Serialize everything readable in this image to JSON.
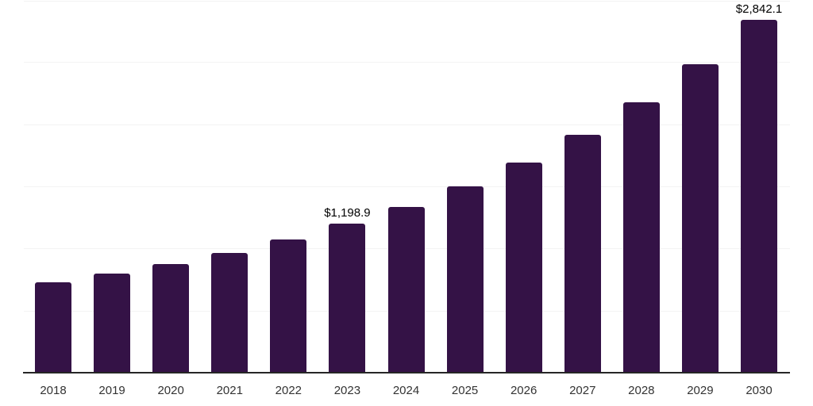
{
  "chart_data": {
    "type": "bar",
    "title": "",
    "xlabel": "",
    "ylabel": "",
    "categories": [
      "2018",
      "2019",
      "2020",
      "2021",
      "2022",
      "2023",
      "2024",
      "2025",
      "2026",
      "2027",
      "2028",
      "2029",
      "2030"
    ],
    "values": [
      725,
      800,
      875,
      962,
      1075,
      1198.9,
      1335,
      1500,
      1690,
      1912,
      2178,
      2484,
      2842.1
    ],
    "data_labels": [
      "",
      "",
      "",
      "",
      "",
      "$1,198.9",
      "",
      "",
      "",
      "",
      "",
      "",
      "$2,842.1"
    ],
    "ylim": [
      0,
      3000
    ],
    "gridline_interval": 500,
    "grid": "horizontal",
    "legend": "none",
    "bar_color": "#341246",
    "axis_line_color": "#262626",
    "gridline_color": "#f3f3f3",
    "tick_label_color": "#333333",
    "data_label_color": "#000000",
    "background_color": "#ffffff"
  }
}
